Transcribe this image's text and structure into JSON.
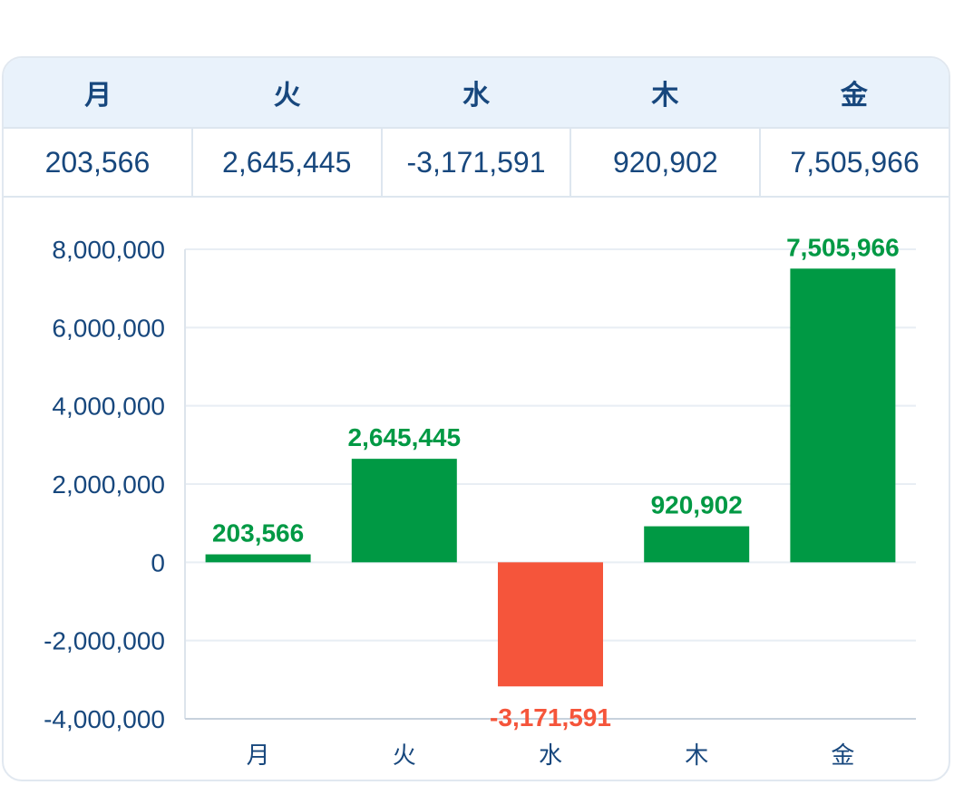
{
  "table": {
    "headers": [
      "月",
      "火",
      "水",
      "木",
      "金"
    ],
    "values": [
      "203,566",
      "2,645,445",
      "-3,171,591",
      "920,902",
      "7,505,966"
    ]
  },
  "colors": {
    "positive": "#009944",
    "negative": "#f5553b",
    "text": "#17477d",
    "header_bg": "#e9f2fb",
    "grid": "#e8eef4"
  },
  "chart_data": {
    "type": "bar",
    "categories": [
      "月",
      "火",
      "水",
      "木",
      "金"
    ],
    "values": [
      203566,
      2645445,
      -3171591,
      920902,
      7505966
    ],
    "value_labels": [
      "203,566",
      "2,645,445",
      "-3,171,591",
      "920,902",
      "7,505,966"
    ],
    "y_ticks": [
      8000000,
      6000000,
      4000000,
      2000000,
      0,
      -2000000,
      -4000000
    ],
    "y_tick_labels": [
      "8,000,000",
      "6,000,000",
      "4,000,000",
      "2,000,000",
      "0",
      "-2,000,000",
      "-4,000,000"
    ],
    "ylim": [
      -4000000,
      8000000
    ],
    "grid": true,
    "title": "",
    "xlabel": "",
    "ylabel": ""
  }
}
